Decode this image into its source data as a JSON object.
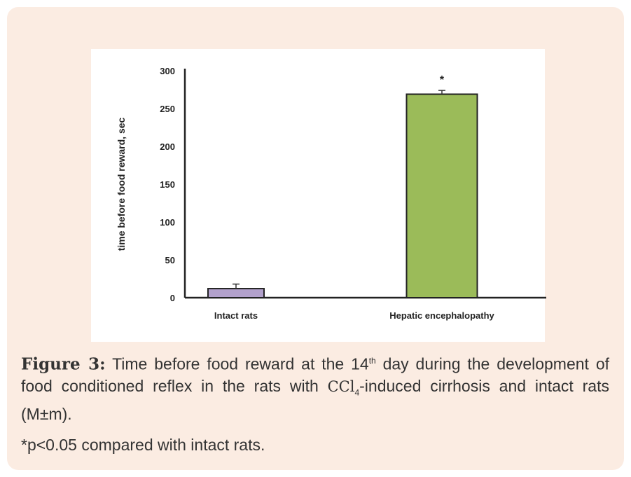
{
  "chart_data": {
    "type": "bar",
    "categories": [
      "Intact rats",
      "Hepatic encephalopathy"
    ],
    "values": [
      12,
      269
    ],
    "errors": [
      6,
      5
    ],
    "significance": [
      "",
      "*"
    ],
    "colors": [
      "#b2a1cc",
      "#9bbb59"
    ],
    "ylabel": "time before food reward, sec",
    "xlabel": "",
    "ylim": [
      0,
      300
    ],
    "yticks": [
      0,
      50,
      100,
      150,
      200,
      250,
      300
    ],
    "grid": false
  },
  "caption": {
    "label": "Figure 3:",
    "text1": "Time before food reward at the 14",
    "sup": "th",
    "text2": "day during the development of food conditioned reflex in the rats with",
    "ccl": "CCl",
    "sub": "4",
    "text3": "-induced cirrhosis and intact rats (M±m)."
  },
  "footnote": "*p<0.05 compared with intact rats."
}
